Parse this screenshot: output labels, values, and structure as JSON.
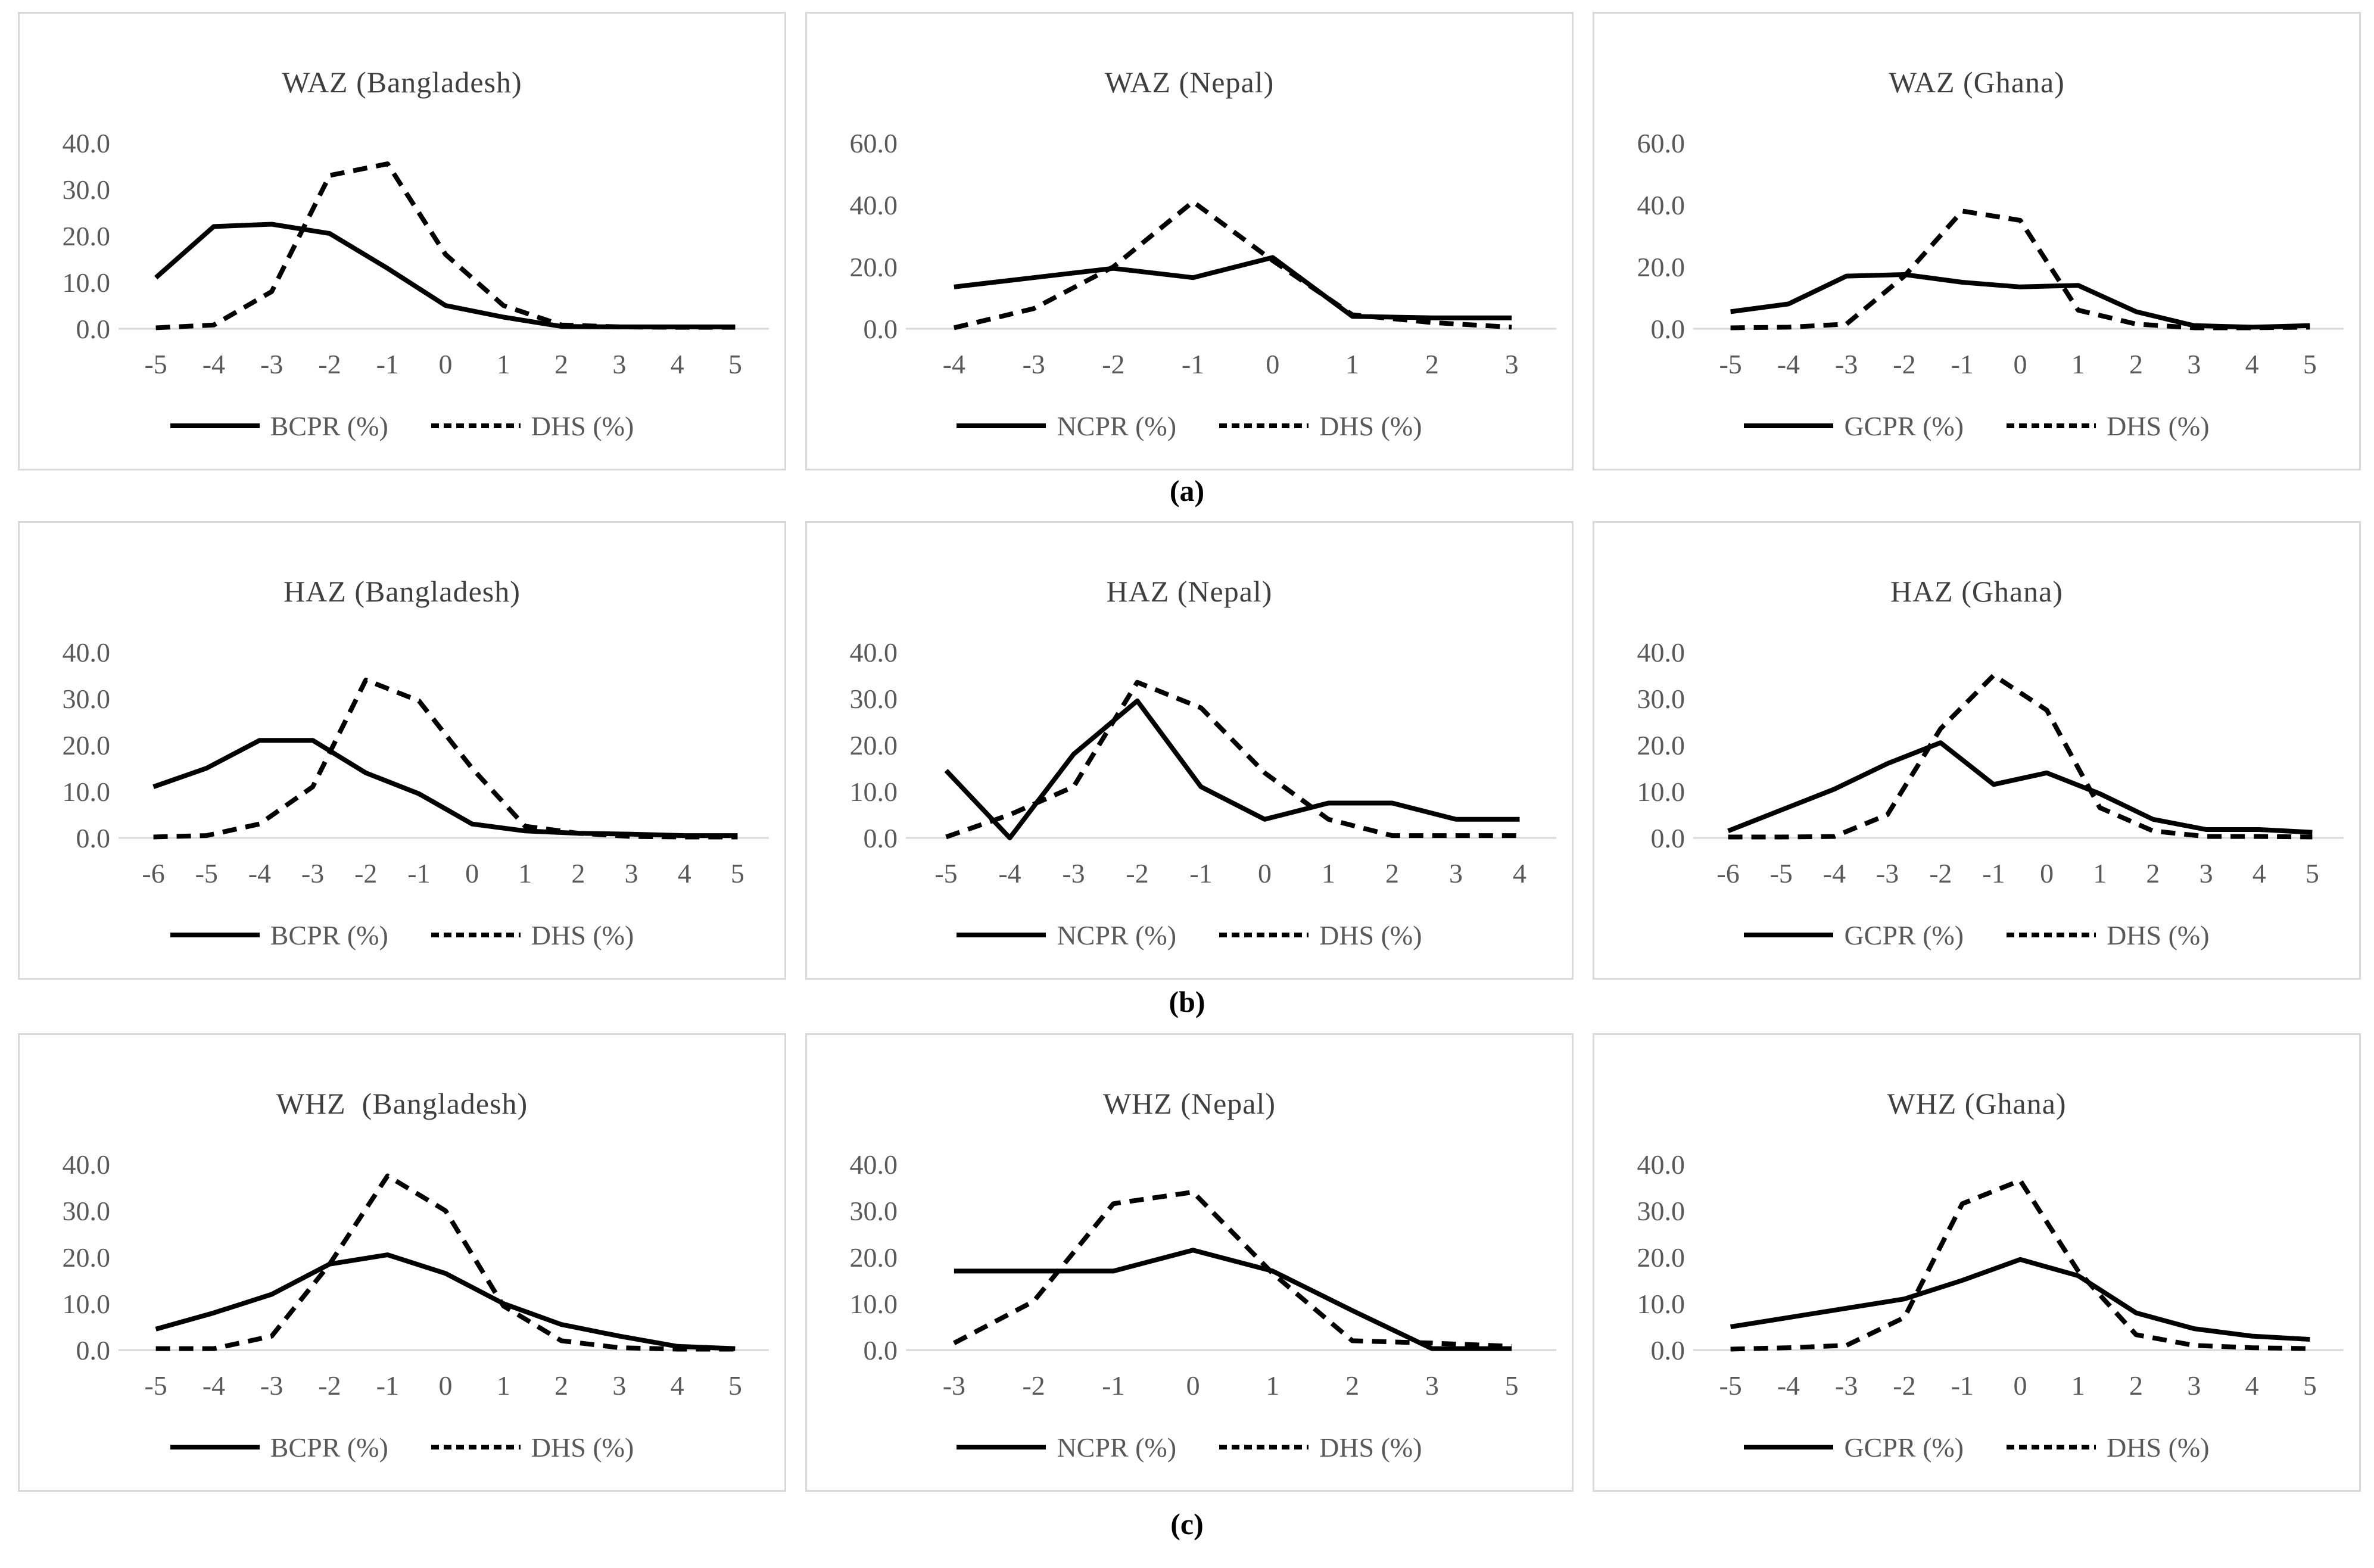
{
  "colors": {
    "line": "#000000",
    "text_gray": "#595959",
    "title_gray": "#3f3f3f",
    "baseline": "#d9d9d9",
    "panel_border": "#d9d9d9",
    "background": "#ffffff"
  },
  "section_labels": {
    "a": "(a)",
    "b": "(b)",
    "c": "(c)"
  },
  "chart_data": [
    {
      "type": "line",
      "title": "WAZ (Bangladesh)",
      "x_labels": [
        "-5",
        "-4",
        "-3",
        "-2",
        "-1",
        "0",
        "1",
        "2",
        "3",
        "4",
        "5"
      ],
      "ylim": [
        0,
        40
      ],
      "grid": false,
      "legend_position": "bottom",
      "yticks": [
        {
          "v": 0,
          "label": "0.0"
        },
        {
          "v": 10,
          "label": "10.0"
        },
        {
          "v": 20,
          "label": "20.0"
        },
        {
          "v": 30,
          "label": "30.0"
        },
        {
          "v": 40,
          "label": "40.0"
        }
      ],
      "series": [
        {
          "name": "BCPR (%)",
          "style": "solid",
          "values": [
            11,
            22,
            22.5,
            20.5,
            13,
            5,
            2.5,
            0.5,
            0.4,
            0.4,
            0.4
          ]
        },
        {
          "name": "DHS (%)",
          "style": "dashed",
          "values": [
            0.2,
            0.8,
            8,
            33,
            35.5,
            16,
            5,
            0.8,
            0.4,
            0.3,
            0.3
          ]
        }
      ]
    },
    {
      "type": "line",
      "title": "WAZ (Nepal)",
      "x_labels": [
        "-4",
        "-3",
        "-2",
        "-1",
        "0",
        "1",
        "2",
        "3"
      ],
      "ylim": [
        0,
        60
      ],
      "grid": false,
      "legend_position": "bottom",
      "yticks": [
        {
          "v": 0,
          "label": "0.0"
        },
        {
          "v": 20,
          "label": "20.0"
        },
        {
          "v": 40,
          "label": "40.0"
        },
        {
          "v": 60,
          "label": "60.0"
        }
      ],
      "series": [
        {
          "name": "NCPR (%)",
          "style": "solid",
          "values": [
            13.5,
            16.5,
            19.5,
            16.5,
            23,
            4,
            3.5,
            3.5
          ]
        },
        {
          "name": "DHS (%)",
          "style": "dashed",
          "values": [
            0.3,
            6.5,
            20,
            41,
            22,
            4.5,
            2,
            0.5
          ]
        }
      ]
    },
    {
      "type": "line",
      "title": "WAZ (Ghana)",
      "x_labels": [
        "-5",
        "-4",
        "-3",
        "-2",
        "-1",
        "0",
        "1",
        "2",
        "3",
        "4",
        "5"
      ],
      "ylim": [
        0,
        60
      ],
      "grid": false,
      "legend_position": "bottom",
      "yticks": [
        {
          "v": 0,
          "label": "0.0"
        },
        {
          "v": 20,
          "label": "20.0"
        },
        {
          "v": 40,
          "label": "40.0"
        },
        {
          "v": 60,
          "label": "60.0"
        }
      ],
      "series": [
        {
          "name": "GCPR (%)",
          "style": "solid",
          "values": [
            5.5,
            8,
            17,
            17.5,
            15,
            13.5,
            14,
            5.5,
            1,
            0.5,
            1
          ]
        },
        {
          "name": "DHS (%)",
          "style": "dashed",
          "values": [
            0.3,
            0.5,
            1.5,
            17,
            38,
            35,
            6,
            1.5,
            0.3,
            0.3,
            0.5
          ]
        }
      ]
    },
    {
      "type": "line",
      "title": "HAZ (Bangladesh)",
      "x_labels": [
        "-6",
        "-5",
        "-4",
        "-3",
        "-2",
        "-1",
        "0",
        "1",
        "2",
        "3",
        "4",
        "5"
      ],
      "ylim": [
        0,
        40
      ],
      "grid": false,
      "legend_position": "bottom",
      "yticks": [
        {
          "v": 0,
          "label": "0.0"
        },
        {
          "v": 10,
          "label": "10.0"
        },
        {
          "v": 20,
          "label": "20.0"
        },
        {
          "v": 30,
          "label": "30.0"
        },
        {
          "v": 40,
          "label": "40.0"
        }
      ],
      "series": [
        {
          "name": "BCPR (%)",
          "style": "solid",
          "values": [
            11,
            15,
            21,
            21,
            14,
            9.5,
            3,
            1.5,
            1,
            0.8,
            0.5,
            0.5
          ]
        },
        {
          "name": "DHS (%)",
          "style": "dashed",
          "values": [
            0.2,
            0.5,
            3,
            11,
            34,
            29.5,
            15,
            2.5,
            1,
            0.3,
            0.2,
            0.2
          ]
        }
      ]
    },
    {
      "type": "line",
      "title": "HAZ (Nepal)",
      "x_labels": [
        "-5",
        "-4",
        "-3",
        "-2",
        "-1",
        "0",
        "1",
        "2",
        "3",
        "4"
      ],
      "ylim": [
        0,
        40
      ],
      "grid": false,
      "legend_position": "bottom",
      "yticks": [
        {
          "v": 0,
          "label": "0.0"
        },
        {
          "v": 10,
          "label": "10.0"
        },
        {
          "v": 20,
          "label": "20.0"
        },
        {
          "v": 30,
          "label": "30.0"
        },
        {
          "v": 40,
          "label": "40.0"
        }
      ],
      "series": [
        {
          "name": "NCPR (%)",
          "style": "solid",
          "values": [
            14.5,
            0,
            18,
            29.5,
            11,
            4,
            7.5,
            7.5,
            4,
            4
          ]
        },
        {
          "name": "DHS (%)",
          "style": "dashed",
          "values": [
            0.2,
            5,
            11,
            33.5,
            28,
            14,
            4,
            0.5,
            0.5,
            0.5
          ]
        }
      ]
    },
    {
      "type": "line",
      "title": "HAZ (Ghana)",
      "x_labels": [
        "-6",
        "-5",
        "-4",
        "-3",
        "-2",
        "-1",
        "0",
        "1",
        "2",
        "3",
        "4",
        "5"
      ],
      "ylim": [
        0,
        40
      ],
      "grid": false,
      "legend_position": "bottom",
      "yticks": [
        {
          "v": 0,
          "label": "0.0"
        },
        {
          "v": 10,
          "label": "10.0"
        },
        {
          "v": 20,
          "label": "20.0"
        },
        {
          "v": 30,
          "label": "30.0"
        },
        {
          "v": 40,
          "label": "40.0"
        }
      ],
      "series": [
        {
          "name": "GCPR (%)",
          "style": "solid",
          "values": [
            1.5,
            6,
            10.5,
            16,
            20.5,
            11.5,
            14,
            9.5,
            4,
            1.8,
            1.8,
            1.2
          ]
        },
        {
          "name": "DHS (%)",
          "style": "dashed",
          "values": [
            0.2,
            0.2,
            0.3,
            5,
            23.5,
            35,
            27.5,
            6.5,
            1.5,
            0.3,
            0.3,
            0.2
          ]
        }
      ]
    },
    {
      "type": "line",
      "title": "WHZ  (Bangladesh)",
      "x_labels": [
        "-5",
        "-4",
        "-3",
        "-2",
        "-1",
        "0",
        "1",
        "2",
        "3",
        "4",
        "5"
      ],
      "ylim": [
        0,
        40
      ],
      "grid": false,
      "legend_position": "bottom",
      "yticks": [
        {
          "v": 0,
          "label": "0.0"
        },
        {
          "v": 10,
          "label": "10.0"
        },
        {
          "v": 20,
          "label": "20.0"
        },
        {
          "v": 30,
          "label": "30.0"
        },
        {
          "v": 40,
          "label": "40.0"
        }
      ],
      "series": [
        {
          "name": "BCPR (%)",
          "style": "solid",
          "values": [
            4.5,
            8,
            12,
            18.5,
            20.5,
            16.5,
            10,
            5.5,
            3,
            0.8,
            0.3
          ]
        },
        {
          "name": "DHS (%)",
          "style": "dashed",
          "values": [
            0.3,
            0.3,
            3,
            18.5,
            37.5,
            30,
            9.5,
            2,
            0.5,
            0.2,
            0.2
          ]
        }
      ]
    },
    {
      "type": "line",
      "title": "WHZ (Nepal)",
      "x_labels": [
        "-3",
        "-2",
        "-1",
        "0",
        "1",
        "2",
        "3",
        "5"
      ],
      "ylim": [
        0,
        40
      ],
      "grid": false,
      "legend_position": "bottom",
      "yticks": [
        {
          "v": 0,
          "label": "0.0"
        },
        {
          "v": 10,
          "label": "10.0"
        },
        {
          "v": 20,
          "label": "20.0"
        },
        {
          "v": 30,
          "label": "30.0"
        },
        {
          "v": 40,
          "label": "40.0"
        }
      ],
      "series": [
        {
          "name": "NCPR (%)",
          "style": "solid",
          "values": [
            17,
            17,
            17,
            21.5,
            17,
            8.5,
            0.3,
            0.3
          ]
        },
        {
          "name": "DHS (%)",
          "style": "dashed",
          "values": [
            1.5,
            10.5,
            31.5,
            34,
            16.5,
            2,
            1.5,
            0.8
          ]
        }
      ]
    },
    {
      "type": "line",
      "title": "WHZ (Ghana)",
      "x_labels": [
        "-5",
        "-4",
        "-3",
        "-2",
        "-1",
        "0",
        "1",
        "2",
        "3",
        "4",
        "5"
      ],
      "ylim": [
        0,
        40
      ],
      "grid": false,
      "legend_position": "bottom",
      "yticks": [
        {
          "v": 0,
          "label": "0.0"
        },
        {
          "v": 10,
          "label": "10.0"
        },
        {
          "v": 20,
          "label": "20.0"
        },
        {
          "v": 30,
          "label": "30.0"
        },
        {
          "v": 40,
          "label": "40.0"
        }
      ],
      "series": [
        {
          "name": "GCPR (%)",
          "style": "solid",
          "values": [
            5,
            7,
            9,
            11,
            15,
            19.5,
            16,
            8,
            4.6,
            3,
            2.3
          ]
        },
        {
          "name": "DHS (%)",
          "style": "dashed",
          "values": [
            0.2,
            0.5,
            1,
            7,
            31.5,
            36.5,
            17,
            3.3,
            1,
            0.5,
            0.3
          ]
        }
      ]
    }
  ]
}
